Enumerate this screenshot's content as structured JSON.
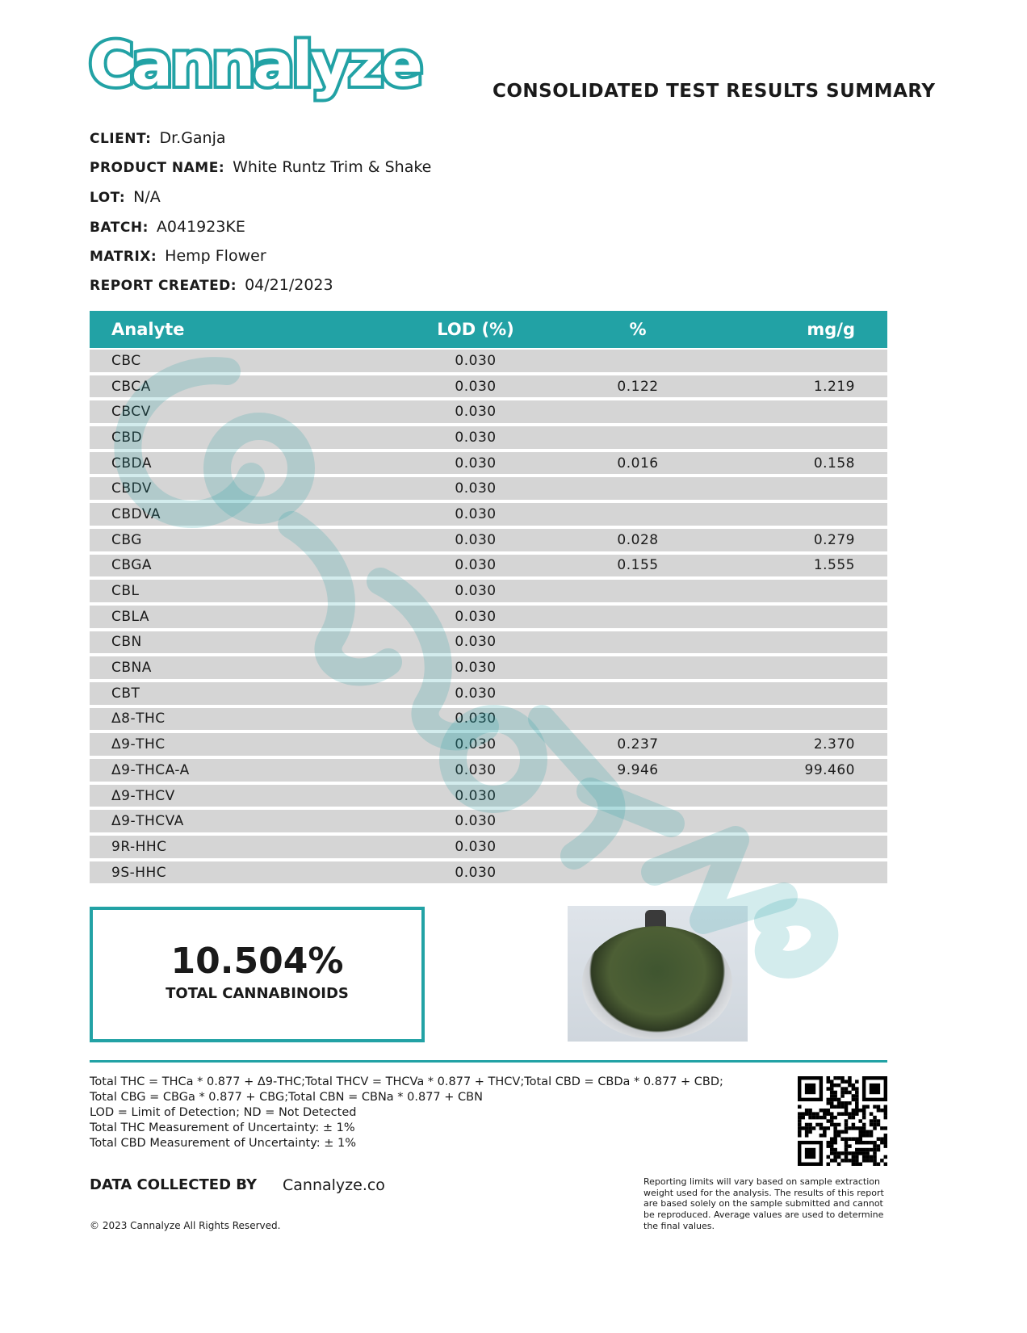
{
  "header": {
    "logo_text": "Cannalyze",
    "title": "CONSOLIDATED TEST RESULTS SUMMARY"
  },
  "meta": [
    {
      "label": "CLIENT:",
      "value": "Dr.Ganja"
    },
    {
      "label": "PRODUCT NAME:",
      "value": "White Runtz Trim & Shake"
    },
    {
      "label": "LOT:",
      "value": "N/A"
    },
    {
      "label": "BATCH:",
      "value": "A041923KE"
    },
    {
      "label": "MATRIX:",
      "value": "Hemp Flower"
    },
    {
      "label": "REPORT CREATED:",
      "value": "04/21/2023"
    }
  ],
  "table": {
    "columns": [
      "Analyte",
      "LOD (%)",
      "%",
      "mg/g"
    ],
    "rows": [
      [
        "CBC",
        "0.030",
        "",
        ""
      ],
      [
        "CBCA",
        "0.030",
        "0.122",
        "1.219"
      ],
      [
        "CBCV",
        "0.030",
        "",
        ""
      ],
      [
        "CBD",
        "0.030",
        "",
        ""
      ],
      [
        "CBDA",
        "0.030",
        "0.016",
        "0.158"
      ],
      [
        "CBDV",
        "0.030",
        "",
        ""
      ],
      [
        "CBDVA",
        "0.030",
        "",
        ""
      ],
      [
        "CBG",
        "0.030",
        "0.028",
        "0.279"
      ],
      [
        "CBGA",
        "0.030",
        "0.155",
        "1.555"
      ],
      [
        "CBL",
        "0.030",
        "",
        ""
      ],
      [
        "CBLA",
        "0.030",
        "",
        ""
      ],
      [
        "CBN",
        "0.030",
        "",
        ""
      ],
      [
        "CBNA",
        "0.030",
        "",
        ""
      ],
      [
        "CBT",
        "0.030",
        "",
        ""
      ],
      [
        "Δ8-THC",
        "0.030",
        "",
        ""
      ],
      [
        "Δ9-THC",
        "0.030",
        "0.237",
        "2.370"
      ],
      [
        "Δ9-THCA-A",
        "0.030",
        "9.946",
        "99.460"
      ],
      [
        "Δ9-THCV",
        "0.030",
        "",
        ""
      ],
      [
        "Δ9-THCVA",
        "0.030",
        "",
        ""
      ],
      [
        "9R-HHC",
        "0.030",
        "",
        ""
      ],
      [
        "9S-HHC",
        "0.030",
        "",
        ""
      ]
    ]
  },
  "total": {
    "value": "10.504%",
    "label": "TOTAL CANNABINOIDS"
  },
  "notes": [
    "Total THC = THCa * 0.877 + Δ9-THC;Total THCV = THCVa * 0.877 + THCV;Total CBD = CBDa * 0.877 + CBD;",
    "Total CBG = CBGa * 0.877 + CBG;Total CBN = CBNa * 0.877 + CBN",
    "LOD = Limit of Detection; ND = Not Detected",
    "Total THC Measurement of Uncertainty: ± 1%",
    "Total CBD Measurement of Uncertainty: ± 1%"
  ],
  "footer": {
    "collected_label": "DATA COLLECTED BY",
    "collected_value": "Cannalyze.co",
    "disclaimer": "Reporting limits will vary based on sample extraction weight used for the analysis. The results of this report are based solely on the sample submitted and cannot be reproduced. Average values are used to determine the final values.",
    "copyright": "© 2023 Cannalyze All Rights Reserved."
  },
  "colors": {
    "accent": "#22a2a5",
    "row": "#d5d5d5"
  }
}
